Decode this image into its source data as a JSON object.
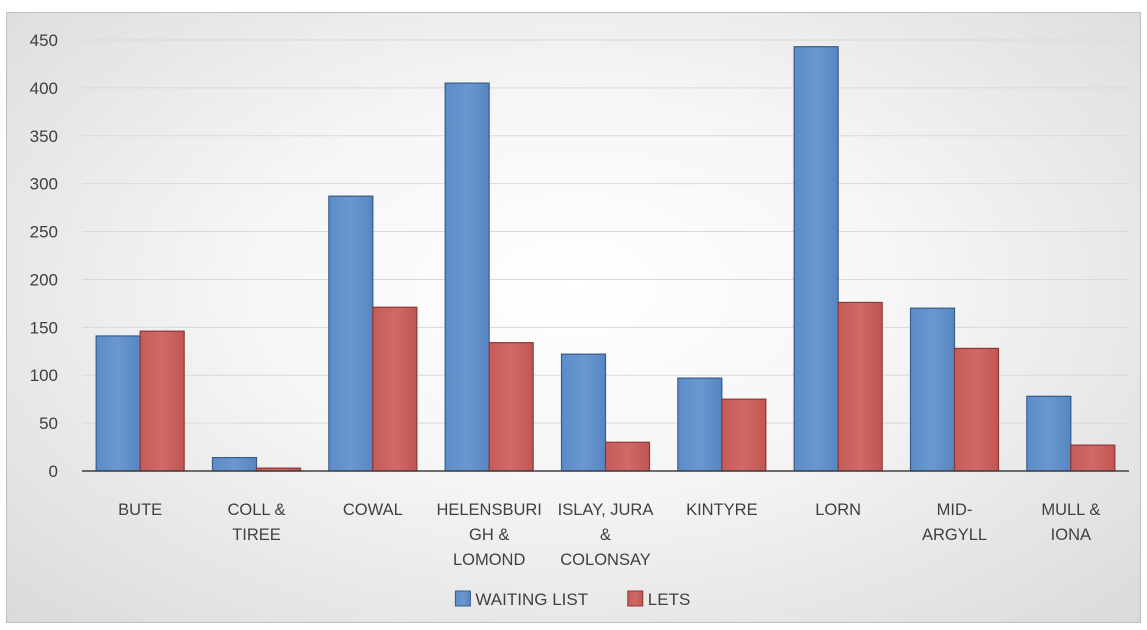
{
  "chart_data": {
    "type": "bar",
    "title": "",
    "xlabel": "",
    "ylabel": "",
    "ylim": [
      0,
      450
    ],
    "yticks": [
      0,
      50,
      100,
      150,
      200,
      250,
      300,
      350,
      400,
      450
    ],
    "grid": true,
    "legend_position": "bottom",
    "categories": [
      [
        "BUTE"
      ],
      [
        "COLL &",
        "TIREE"
      ],
      [
        "COWAL"
      ],
      [
        "HELENSBURI",
        "GH &",
        "LOMOND"
      ],
      [
        "ISLAY, JURA",
        "&",
        "COLONSAY"
      ],
      [
        "KINTYRE"
      ],
      [
        "LORN"
      ],
      [
        "MID-",
        "ARGYLL"
      ],
      [
        "MULL &",
        "IONA"
      ]
    ],
    "series": [
      {
        "name": "WAITING LIST",
        "color": "#4f81bd",
        "stroke": "#385d8a",
        "values": [
          141,
          14,
          287,
          405,
          122,
          97,
          443,
          170,
          78
        ]
      },
      {
        "name": "LETS",
        "color": "#c0504d",
        "stroke": "#8c3836",
        "values": [
          146,
          3,
          171,
          134,
          30,
          75,
          176,
          128,
          27
        ]
      }
    ]
  }
}
